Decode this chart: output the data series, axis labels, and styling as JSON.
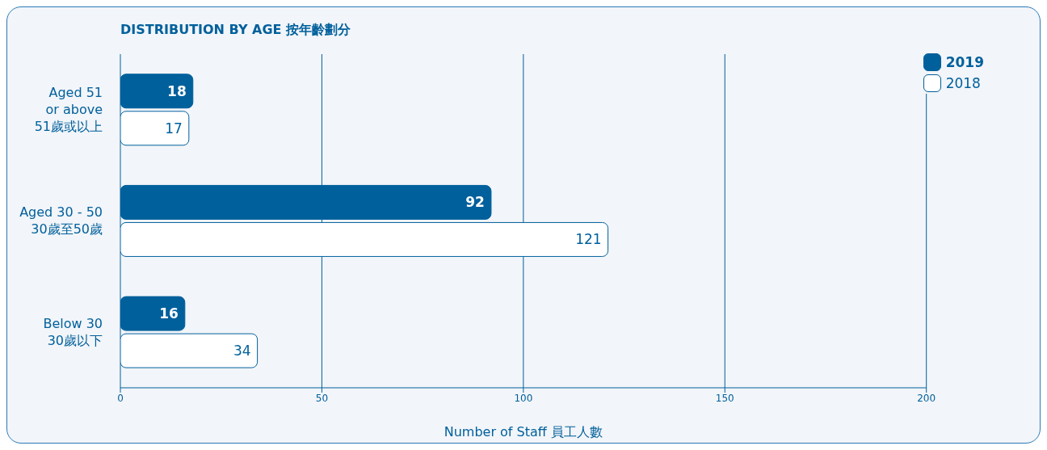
{
  "chart_data": {
    "type": "bar",
    "orientation": "horizontal",
    "title": "DISTRIBUTION BY AGE 按年齡劃分",
    "xlabel": "Number of Staff 員工人數",
    "categories": [
      "Aged 51\nor above\n51歲或以上",
      "Aged 30 - 50\n30歲至50歲",
      "Below 30\n30歲以下"
    ],
    "series": [
      {
        "name": "2019",
        "color": "#00609c",
        "values": [
          18,
          92,
          16
        ]
      },
      {
        "name": "2018",
        "color": "#ffffff",
        "values": [
          17,
          121,
          34
        ]
      }
    ],
    "xlim": [
      0,
      200
    ],
    "xticks": [
      0,
      50,
      100,
      150,
      200
    ],
    "grid": "x",
    "legend": "top right",
    "data_labels": true
  }
}
